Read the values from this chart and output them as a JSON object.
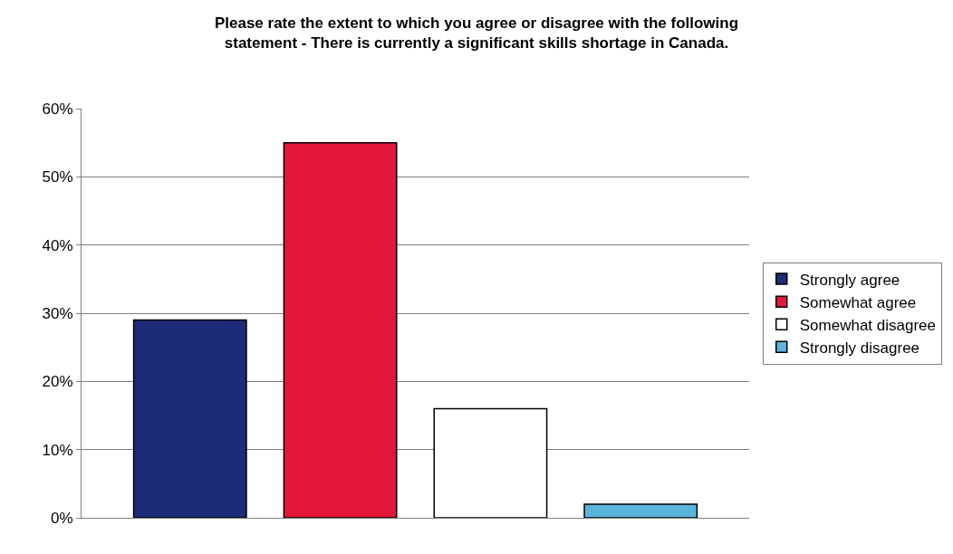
{
  "chart_data": {
    "type": "bar",
    "title": "Please rate the extent to which you agree or disagree with the following\nstatement - There is currently a significant skills shortage in Canada.",
    "categories": [
      null
    ],
    "series": [
      {
        "name": "Strongly agree",
        "color": "#1c2c78",
        "values": [
          29
        ]
      },
      {
        "name": "Somewhat agree",
        "color": "#e3173a",
        "values": [
          55
        ]
      },
      {
        "name": "Somewhat disagree",
        "color": "#ffffff",
        "values": [
          16
        ]
      },
      {
        "name": "Strongly disagree",
        "color": "#5bb4dc",
        "values": [
          2
        ]
      }
    ],
    "ylim": [
      0,
      60
    ],
    "yticks": [
      {
        "value": 0,
        "label": "0%"
      },
      {
        "value": 10,
        "label": "10%"
      },
      {
        "value": 20,
        "label": "20%"
      },
      {
        "value": 30,
        "label": "30%"
      },
      {
        "value": 40,
        "label": "40%"
      },
      {
        "value": 50,
        "label": "50%"
      },
      {
        "value": 60,
        "label": "60%"
      }
    ],
    "grid": "y",
    "legend": "right"
  }
}
